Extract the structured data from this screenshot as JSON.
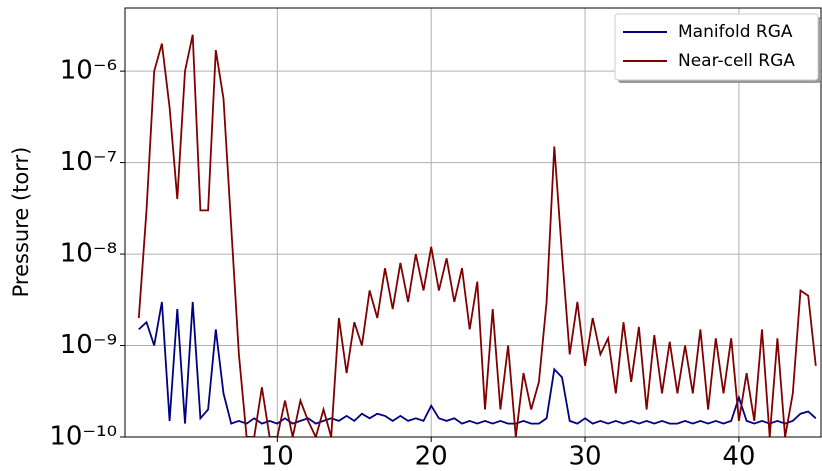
{
  "chart_data": {
    "type": "line",
    "y_label": "Pressure (torr)",
    "log_y": true,
    "grid": true,
    "legend": "upper right",
    "xlim": [
      0.1,
      45.4
    ],
    "xticks": [
      10,
      20,
      30,
      40
    ],
    "ylim": [
      1e-10,
      4.9e-06
    ],
    "yticks": [
      {
        "value": 1e-10,
        "label": "10⁻¹⁰"
      },
      {
        "value": 1e-09,
        "label": "10⁻⁹"
      },
      {
        "value": 1e-08,
        "label": "10⁻⁸"
      },
      {
        "value": 1e-07,
        "label": "10⁻⁷"
      },
      {
        "value": 1e-06,
        "label": "10⁻⁶"
      }
    ],
    "x": [
      1.0,
      1.5,
      2.0,
      2.5,
      3.0,
      3.5,
      4.0,
      4.5,
      5.0,
      5.5,
      6.0,
      6.5,
      7.0,
      7.5,
      8.0,
      8.5,
      9.0,
      9.5,
      10.0,
      10.5,
      11.0,
      11.5,
      12.0,
      12.5,
      13.0,
      13.5,
      14.0,
      14.5,
      15.0,
      15.5,
      16.0,
      16.5,
      17.0,
      17.5,
      18.0,
      18.5,
      19.0,
      19.5,
      20.0,
      20.5,
      21.0,
      21.5,
      22.0,
      22.5,
      23.0,
      23.5,
      24.0,
      24.5,
      25.0,
      25.5,
      26.0,
      26.5,
      27.0,
      27.5,
      28.0,
      28.5,
      29.0,
      29.5,
      30.0,
      30.5,
      31.0,
      31.5,
      32.0,
      32.5,
      33.0,
      33.5,
      34.0,
      34.5,
      35.0,
      35.5,
      36.0,
      36.5,
      37.0,
      37.5,
      38.0,
      38.5,
      39.0,
      39.5,
      40.0,
      40.5,
      41.0,
      41.5,
      42.0,
      42.5,
      43.0,
      43.5,
      44.0,
      44.5,
      45.0
    ],
    "series": [
      {
        "name": "Manifold RGA",
        "color": "#000080",
        "values": [
          1.5e-09,
          1.8e-09,
          1e-09,
          3e-09,
          1.5e-10,
          2.5e-09,
          1.4e-10,
          3e-09,
          1.6e-10,
          2e-10,
          1.5e-09,
          3e-10,
          1.4e-10,
          1.5e-10,
          1.4e-10,
          1.6e-10,
          1.4e-10,
          1.5e-10,
          1.4e-10,
          1.6e-10,
          1.4e-10,
          1.5e-10,
          1.6e-10,
          1.4e-10,
          1.5e-10,
          1.6e-10,
          1.5e-10,
          1.7e-10,
          1.5e-10,
          1.8e-10,
          1.6e-10,
          1.8e-10,
          1.7e-10,
          1.5e-10,
          1.7e-10,
          1.5e-10,
          1.6e-10,
          1.5e-10,
          2.2e-10,
          1.6e-10,
          1.5e-10,
          1.6e-10,
          1.4e-10,
          1.5e-10,
          1.4e-10,
          1.5e-10,
          1.4e-10,
          1.5e-10,
          1.4e-10,
          1.4e-10,
          1.5e-10,
          1.4e-10,
          1.4e-10,
          1.6e-10,
          5.5e-10,
          4.5e-10,
          1.5e-10,
          1.4e-10,
          1.6e-10,
          1.4e-10,
          1.5e-10,
          1.4e-10,
          1.5e-10,
          1.4e-10,
          1.5e-10,
          1.4e-10,
          1.5e-10,
          1.4e-10,
          1.5e-10,
          1.4e-10,
          1.4e-10,
          1.5e-10,
          1.4e-10,
          1.5e-10,
          1.4e-10,
          1.5e-10,
          1.4e-10,
          1.5e-10,
          2.7e-10,
          1.5e-10,
          1.4e-10,
          1.5e-10,
          1.4e-10,
          1.5e-10,
          1.4e-10,
          1.5e-10,
          1.8e-10,
          1.9e-10,
          1.6e-10
        ]
      },
      {
        "name": "Near-cell RGA",
        "color": "#800000",
        "values": [
          2e-09,
          3e-08,
          1e-06,
          2e-06,
          4e-07,
          4e-08,
          1e-06,
          2.5e-06,
          3e-08,
          3e-08,
          1.7e-06,
          5e-07,
          2e-08,
          8e-10,
          1e-10,
          1e-10,
          3.5e-10,
          1e-10,
          1e-10,
          2.5e-10,
          1e-10,
          2.5e-10,
          1.5e-10,
          1e-10,
          2e-10,
          1e-10,
          2e-09,
          5e-10,
          1.8e-09,
          1e-09,
          4e-09,
          2e-09,
          7e-09,
          2.5e-09,
          8e-09,
          3e-09,
          1e-08,
          4e-09,
          1.2e-08,
          4e-09,
          9e-09,
          3e-09,
          7e-09,
          1.5e-09,
          5e-09,
          2e-10,
          2.5e-09,
          2e-10,
          1e-09,
          1e-10,
          5e-10,
          2e-10,
          4e-10,
          3e-09,
          1.5e-07,
          1e-08,
          8e-10,
          3e-09,
          6e-10,
          2e-09,
          8e-10,
          1.2e-09,
          3e-10,
          1.8e-09,
          4e-10,
          1.6e-09,
          2e-10,
          1.3e-09,
          3e-10,
          1.1e-09,
          3e-10,
          1e-09,
          3e-10,
          1.5e-09,
          2e-10,
          1.2e-09,
          3e-10,
          1.2e-09,
          1.5e-10,
          5e-10,
          1.5e-10,
          1.5e-09,
          1e-10,
          1.2e-09,
          1e-10,
          3e-10,
          4e-09,
          3.5e-09,
          6e-10
        ]
      }
    ]
  }
}
